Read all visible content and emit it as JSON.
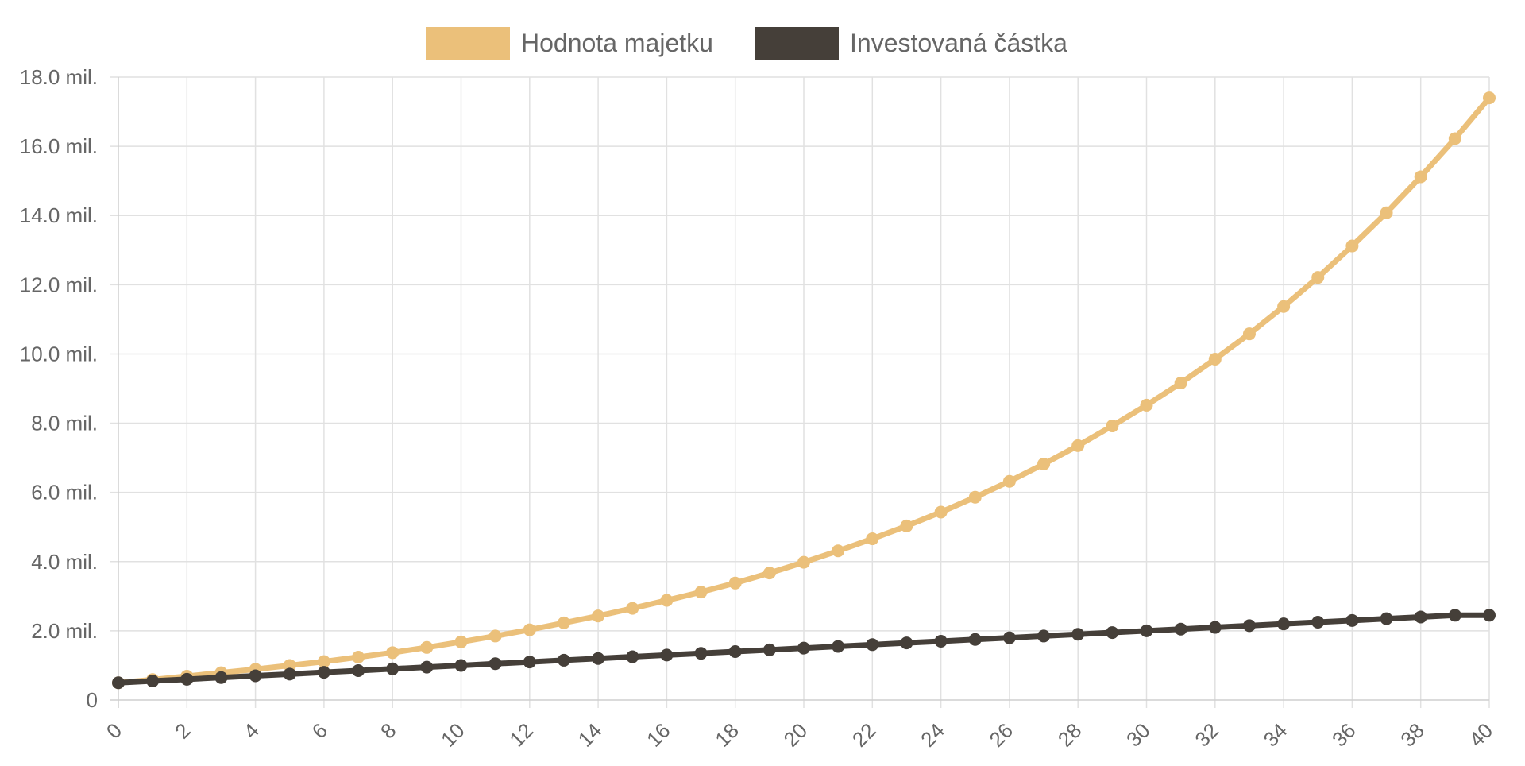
{
  "chart_data": {
    "type": "line",
    "legend_position": "top-center",
    "grid": true,
    "x": [
      0,
      1,
      2,
      3,
      4,
      5,
      6,
      7,
      8,
      9,
      10,
      11,
      12,
      13,
      14,
      15,
      16,
      17,
      18,
      19,
      20,
      21,
      22,
      23,
      24,
      25,
      26,
      27,
      28,
      29,
      30,
      31,
      32,
      33,
      34,
      35,
      36,
      37,
      38,
      39,
      40
    ],
    "x_tick_labels": [
      "0",
      "2",
      "4",
      "6",
      "8",
      "10",
      "12",
      "14",
      "16",
      "18",
      "20",
      "22",
      "24",
      "26",
      "28",
      "30",
      "32",
      "34",
      "36",
      "38",
      "40"
    ],
    "x_tick_values": [
      0,
      2,
      4,
      6,
      8,
      10,
      12,
      14,
      16,
      18,
      20,
      22,
      24,
      26,
      28,
      30,
      32,
      34,
      36,
      38,
      40
    ],
    "xlim": [
      0,
      40
    ],
    "y_tick_labels": [
      "0",
      "2.0 mil.",
      "4.0 mil.",
      "6.0 mil.",
      "8.0 mil.",
      "10.0 mil.",
      "12.0 mil.",
      "14.0 mil.",
      "16.0 mil.",
      "18.0 mil."
    ],
    "y_tick_values": [
      0,
      2000000,
      4000000,
      6000000,
      8000000,
      10000000,
      12000000,
      14000000,
      16000000,
      18000000
    ],
    "ylim": [
      0,
      18000000
    ],
    "series": [
      {
        "name": "Hodnota majetku",
        "color": "#ebc07a",
        "values": [
          500000,
          590000,
          690000,
          790000,
          890000,
          1000000,
          1110000,
          1240000,
          1370000,
          1520000,
          1680000,
          1850000,
          2030000,
          2230000,
          2430000,
          2650000,
          2880000,
          3120000,
          3380000,
          3670000,
          3980000,
          4310000,
          4660000,
          5030000,
          5430000,
          5860000,
          6320000,
          6820000,
          7350000,
          7920000,
          8520000,
          9160000,
          9850000,
          10580000,
          11370000,
          12210000,
          13120000,
          14080000,
          15120000,
          16220000,
          17400000
        ]
      },
      {
        "name": "Investovaná částka",
        "color": "#453f39",
        "values": [
          500000,
          550000,
          600000,
          650000,
          700000,
          750000,
          800000,
          850000,
          900000,
          950000,
          1000000,
          1050000,
          1100000,
          1150000,
          1200000,
          1250000,
          1300000,
          1350000,
          1400000,
          1450000,
          1500000,
          1550000,
          1600000,
          1650000,
          1700000,
          1750000,
          1800000,
          1850000,
          1900000,
          1950000,
          2000000,
          2050000,
          2100000,
          2150000,
          2200000,
          2250000,
          2300000,
          2350000,
          2400000,
          2450000,
          2450000
        ]
      }
    ]
  }
}
